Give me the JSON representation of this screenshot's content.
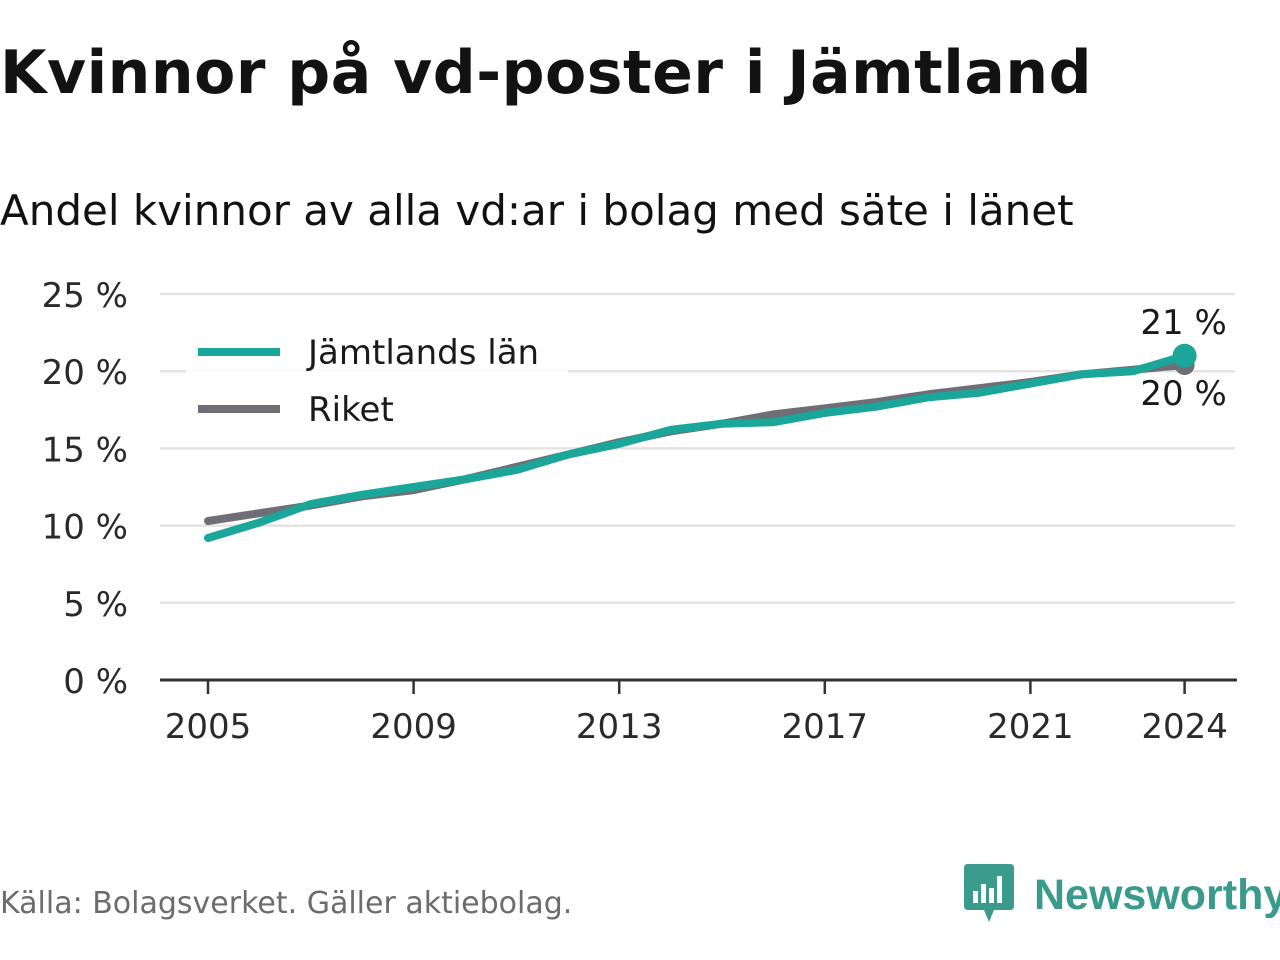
{
  "title": "Kvinnor på vd-poster i Jämtland",
  "subtitle": "Andel kvinnor av alla vd:ar i bolag med säte i länet",
  "source": "Källa: Bolagsverket. Gäller aktiebolag.",
  "brand": {
    "name": "Newsworthy",
    "icon": "newsworthy-logo-icon",
    "color": "#3a9a8c"
  },
  "chart_data": {
    "type": "line",
    "title": "Kvinnor på vd-poster i Jämtland",
    "subtitle": "Andel kvinnor av alla vd:ar i bolag med säte i länet",
    "xlabel": "",
    "ylabel": "",
    "x": [
      2005,
      2006,
      2007,
      2008,
      2009,
      2010,
      2011,
      2012,
      2013,
      2014,
      2015,
      2016,
      2017,
      2018,
      2019,
      2020,
      2021,
      2022,
      2023,
      2024
    ],
    "x_ticks": [
      "2005",
      "2009",
      "2013",
      "2017",
      "2021",
      "2024"
    ],
    "x_tick_values": [
      2005,
      2009,
      2013,
      2017,
      2021,
      2024
    ],
    "y_ticks": [
      "0 %",
      "5 %",
      "10 %",
      "15 %",
      "20 %",
      "25 %"
    ],
    "y_tick_values": [
      0,
      5,
      10,
      15,
      20,
      25
    ],
    "ylim": [
      0,
      25
    ],
    "xlim": [
      2004,
      2025
    ],
    "grid": true,
    "legend_position": "top-left",
    "series": [
      {
        "name": "Riket",
        "color": "#6f6e76",
        "values": [
          10.3,
          10.8,
          11.3,
          11.9,
          12.3,
          13.0,
          13.8,
          14.6,
          15.4,
          16.1,
          16.6,
          17.2,
          17.6,
          18.0,
          18.5,
          18.9,
          19.3,
          19.8,
          20.1,
          20.4
        ],
        "end_label": "20 %"
      },
      {
        "name": "Jämtlands län",
        "color": "#1aa699",
        "values": [
          9.2,
          10.2,
          11.4,
          12.0,
          12.5,
          13.0,
          13.6,
          14.6,
          15.3,
          16.2,
          16.6,
          16.7,
          17.3,
          17.7,
          18.3,
          18.6,
          19.2,
          19.8,
          20.0,
          21.0
        ],
        "end_label": "21 %"
      }
    ]
  }
}
